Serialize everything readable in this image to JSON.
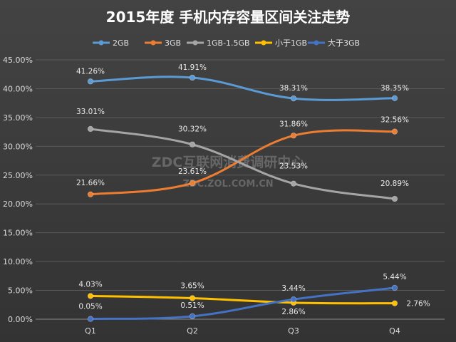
{
  "chart_data": {
    "type": "line",
    "title": "2015年度 手机内存容量区间关注走势",
    "categories": [
      "Q1",
      "Q2",
      "Q3",
      "Q4"
    ],
    "ylim": [
      0,
      45
    ],
    "yticks": [
      "0.00%",
      "5.00%",
      "10.00%",
      "15.00%",
      "20.00%",
      "25.00%",
      "30.00%",
      "35.00%",
      "40.00%",
      "45.00%"
    ],
    "grid": true,
    "legend_position": "top",
    "series": [
      {
        "name": "2GB",
        "color": "#5b9bd5",
        "values": [
          41.26,
          41.91,
          38.31,
          38.35
        ],
        "labels": [
          "41.26%",
          "41.91%",
          "38.31%",
          "38.35%"
        ]
      },
      {
        "name": "3GB",
        "color": "#ed7d31",
        "values": [
          21.66,
          23.61,
          31.86,
          32.56
        ],
        "labels": [
          "21.66%",
          "23.61%",
          "31.86%",
          "32.56%"
        ]
      },
      {
        "name": "1GB-1.5GB",
        "color": "#a5a5a5",
        "values": [
          33.01,
          30.32,
          23.53,
          20.89
        ],
        "labels": [
          "33.01%",
          "30.32%",
          "23.53%",
          "20.89%"
        ]
      },
      {
        "name": "小于1GB",
        "color": "#ffc000",
        "values": [
          4.03,
          3.65,
          2.86,
          2.76
        ],
        "labels": [
          "4.03%",
          "3.65%",
          "2.86%",
          "2.76%"
        ]
      },
      {
        "name": "大于3GB",
        "color": "#4472c4",
        "values": [
          0.05,
          0.51,
          3.44,
          5.44
        ],
        "labels": [
          "0.05%",
          "0.51%",
          "3.44%",
          "5.44%"
        ]
      }
    ]
  },
  "watermark": {
    "line1": "ZDC互联网消费调研中心",
    "line2": "ZDC.ZOL.COM.CN"
  }
}
